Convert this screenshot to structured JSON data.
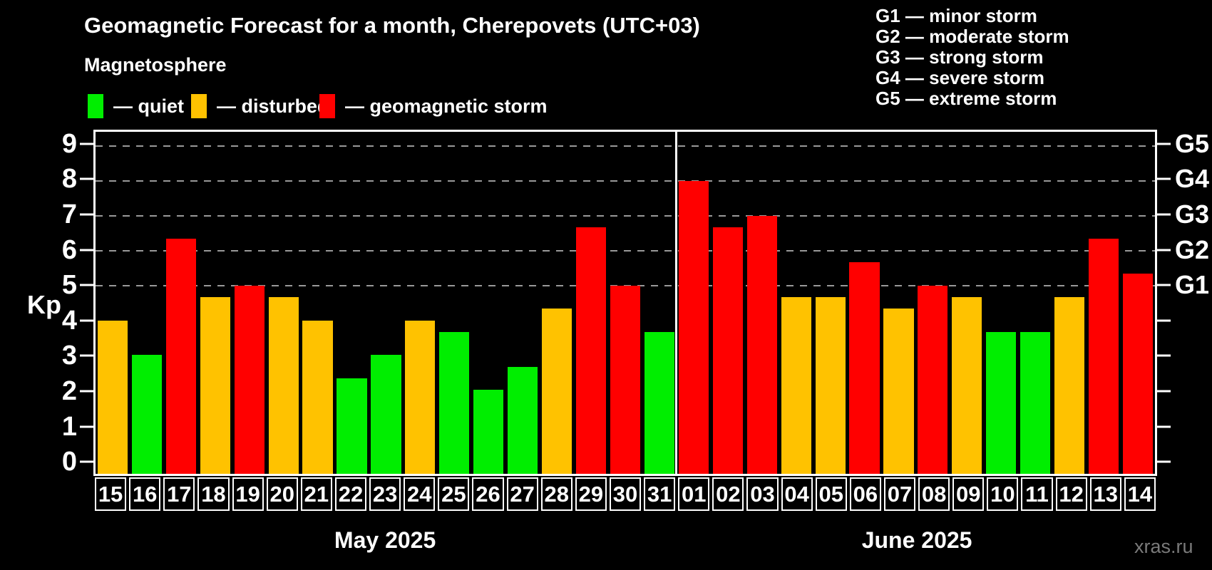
{
  "header": {
    "title": "Geomagnetic Forecast for a month, Cherepovets (UTC+03)",
    "subtitle": "Magnetosphere",
    "legend": [
      {
        "key": "quiet",
        "label": "— quiet",
        "color": "#00ee00"
      },
      {
        "key": "disturbed",
        "label": "— disturbed",
        "color": "#ffc200"
      },
      {
        "key": "storm",
        "label": "— geomagnetic storm",
        "color": "#ff0000"
      }
    ],
    "g_scale_legend": [
      "G1 — minor storm",
      "G2 — moderate storm",
      "G3 — strong storm",
      "G4 — severe storm",
      "G5 — extreme storm"
    ]
  },
  "chart_data": {
    "type": "bar",
    "title": "Geomagnetic Forecast for a month, Cherepovets (UTC+03)",
    "ylabel": "Kp",
    "ylim": [
      -0.4,
      9.4
    ],
    "grid": "dashed horizontal at storm levels",
    "kp_axis_ticks": [
      0,
      1,
      2,
      3,
      4,
      5,
      6,
      7,
      8,
      9
    ],
    "g_axis_ticks": [
      {
        "kp": 5,
        "label": "G1"
      },
      {
        "kp": 6,
        "label": "G2"
      },
      {
        "kp": 7,
        "label": "G3"
      },
      {
        "kp": 8,
        "label": "G4"
      },
      {
        "kp": 9,
        "label": "G5"
      }
    ],
    "gridline_kps": [
      5,
      6,
      7,
      8,
      9
    ],
    "status_colors": {
      "quiet": "#00ee00",
      "disturbed": "#ffc200",
      "storm": "#ff0000"
    },
    "months": [
      {
        "label": "May 2025",
        "days": [
          {
            "date": "15",
            "kp": 4.0,
            "status": "disturbed"
          },
          {
            "date": "16",
            "kp": 3.0,
            "status": "quiet"
          },
          {
            "date": "17",
            "kp": 6.33,
            "status": "storm"
          },
          {
            "date": "18",
            "kp": 4.67,
            "status": "disturbed"
          },
          {
            "date": "19",
            "kp": 5.0,
            "status": "storm"
          },
          {
            "date": "20",
            "kp": 4.67,
            "status": "disturbed"
          },
          {
            "date": "21",
            "kp": 4.0,
            "status": "disturbed"
          },
          {
            "date": "22",
            "kp": 2.33,
            "status": "quiet"
          },
          {
            "date": "23",
            "kp": 3.0,
            "status": "quiet"
          },
          {
            "date": "24",
            "kp": 4.0,
            "status": "disturbed"
          },
          {
            "date": "25",
            "kp": 3.67,
            "status": "quiet"
          },
          {
            "date": "26",
            "kp": 2.0,
            "status": "quiet"
          },
          {
            "date": "27",
            "kp": 2.67,
            "status": "quiet"
          },
          {
            "date": "28",
            "kp": 4.33,
            "status": "disturbed"
          },
          {
            "date": "29",
            "kp": 6.67,
            "status": "storm"
          },
          {
            "date": "30",
            "kp": 5.0,
            "status": "storm"
          },
          {
            "date": "31",
            "kp": 3.67,
            "status": "quiet"
          }
        ]
      },
      {
        "label": "June 2025",
        "days": [
          {
            "date": "01",
            "kp": 8.0,
            "status": "storm"
          },
          {
            "date": "02",
            "kp": 6.67,
            "status": "storm"
          },
          {
            "date": "03",
            "kp": 7.0,
            "status": "storm"
          },
          {
            "date": "04",
            "kp": 4.67,
            "status": "disturbed"
          },
          {
            "date": "05",
            "kp": 4.67,
            "status": "disturbed"
          },
          {
            "date": "06",
            "kp": 5.67,
            "status": "storm"
          },
          {
            "date": "07",
            "kp": 4.33,
            "status": "disturbed"
          },
          {
            "date": "08",
            "kp": 5.0,
            "status": "storm"
          },
          {
            "date": "09",
            "kp": 4.67,
            "status": "disturbed"
          },
          {
            "date": "10",
            "kp": 3.67,
            "status": "quiet"
          },
          {
            "date": "11",
            "kp": 3.67,
            "status": "quiet"
          },
          {
            "date": "12",
            "kp": 4.67,
            "status": "disturbed"
          },
          {
            "date": "13",
            "kp": 6.33,
            "status": "storm"
          },
          {
            "date": "14",
            "kp": 5.33,
            "status": "storm"
          }
        ]
      }
    ]
  },
  "watermark": "xras.ru",
  "colors": {
    "background": "#000000",
    "text": "#ffffff",
    "gridline": "#999999",
    "watermark": "#7a7a7a"
  }
}
